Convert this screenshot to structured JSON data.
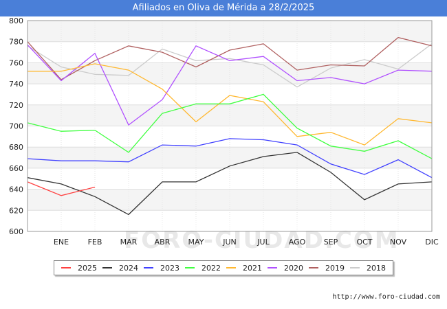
{
  "title": "Afiliados en Oliva de Mérida a 28/2/2025",
  "footer": "http://www.foro-ciudad.com",
  "watermark": "FORO-CIUDAD.COM",
  "chart_data": {
    "type": "line",
    "title": "Afiliados en Oliva de Mérida a 28/2/2025",
    "xlabel": "",
    "ylabel": "",
    "categories": [
      "",
      "ENE",
      "FEB",
      "MAR",
      "ABR",
      "MAY",
      "JUN",
      "JUL",
      "AGO",
      "SEP",
      "OCT",
      "NOV",
      "DIC"
    ],
    "ylim": [
      600,
      800
    ],
    "yticks": [
      600,
      620,
      640,
      660,
      680,
      700,
      720,
      740,
      760,
      780,
      800
    ],
    "grid": true,
    "legend_position": "bottom",
    "series": [
      {
        "name": "2025",
        "color": "#ff4040",
        "values": [
          647,
          634,
          642,
          null,
          null,
          null,
          null,
          null,
          null,
          null,
          null,
          null,
          null
        ]
      },
      {
        "name": "2024",
        "color": "#333333",
        "values": [
          651,
          645,
          633,
          616,
          647,
          647,
          662,
          671,
          675,
          656,
          630,
          645,
          647
        ]
      },
      {
        "name": "2023",
        "color": "#4040ff",
        "values": [
          669,
          667,
          667,
          666,
          682,
          681,
          688,
          687,
          682,
          664,
          654,
          668,
          651
        ]
      },
      {
        "name": "2022",
        "color": "#40ff40",
        "values": [
          703,
          695,
          696,
          675,
          712,
          721,
          721,
          730,
          698,
          681,
          676,
          686,
          669
        ]
      },
      {
        "name": "2021",
        "color": "#ffb830",
        "values": [
          752,
          752,
          759,
          753,
          735,
          704,
          729,
          723,
          690,
          694,
          682,
          707,
          703
        ]
      },
      {
        "name": "2020",
        "color": "#b050ff",
        "values": [
          777,
          743,
          769,
          701,
          725,
          776,
          762,
          766,
          743,
          746,
          740,
          753,
          752
        ]
      },
      {
        "name": "2019",
        "color": "#b06060",
        "values": [
          780,
          744,
          762,
          776,
          770,
          756,
          772,
          778,
          753,
          758,
          757,
          784,
          776
        ]
      },
      {
        "name": "2018",
        "color": "#cccccc",
        "values": [
          776,
          756,
          749,
          748,
          773,
          762,
          764,
          758,
          737,
          755,
          763,
          754,
          778
        ]
      }
    ]
  }
}
